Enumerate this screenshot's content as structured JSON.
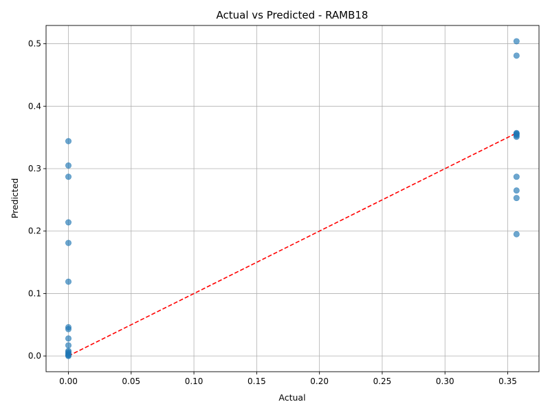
{
  "chart_data": {
    "type": "scatter",
    "title": "Actual vs Predicted - RAMB18",
    "xlabel": "Actual",
    "ylabel": "Predicted",
    "xlim": [
      -0.0178,
      0.3749
    ],
    "ylim": [
      -0.0252,
      0.5293
    ],
    "xticks": [
      0.0,
      0.05,
      0.1,
      0.15,
      0.2,
      0.25,
      0.3,
      0.35
    ],
    "xtick_labels": [
      "0.00",
      "0.05",
      "0.10",
      "0.15",
      "0.20",
      "0.25",
      "0.30",
      "0.35"
    ],
    "yticks": [
      0.0,
      0.1,
      0.2,
      0.3,
      0.4,
      0.5
    ],
    "ytick_labels": [
      "0.0",
      "0.1",
      "0.2",
      "0.3",
      "0.4",
      "0.5"
    ],
    "grid": true,
    "series": [
      {
        "color": "#1f77b4",
        "alpha": 0.65,
        "points": [
          [
            0.0,
            0.344
          ],
          [
            0.0,
            0.305
          ],
          [
            0.0,
            0.287
          ],
          [
            0.0,
            0.214
          ],
          [
            0.0,
            0.181
          ],
          [
            0.0,
            0.119
          ],
          [
            0.0,
            0.046
          ],
          [
            0.0,
            0.043
          ],
          [
            0.0,
            0.028
          ],
          [
            0.0,
            0.017
          ],
          [
            0.0,
            0.008
          ],
          [
            0.0,
            0.006
          ],
          [
            0.0,
            0.004
          ],
          [
            0.0,
            0.002
          ],
          [
            0.0,
            0.001
          ],
          [
            0.0,
            0.0
          ],
          [
            0.357,
            0.504
          ],
          [
            0.357,
            0.481
          ],
          [
            0.357,
            0.357
          ],
          [
            0.357,
            0.356
          ],
          [
            0.357,
            0.355
          ],
          [
            0.357,
            0.353
          ],
          [
            0.357,
            0.351
          ],
          [
            0.357,
            0.287
          ],
          [
            0.357,
            0.265
          ],
          [
            0.357,
            0.253
          ],
          [
            0.357,
            0.195
          ]
        ]
      }
    ],
    "reference_line": {
      "style": "dashed",
      "color": "#ff0000",
      "from": [
        0.0,
        0.0
      ],
      "to": [
        0.357,
        0.357
      ]
    }
  }
}
